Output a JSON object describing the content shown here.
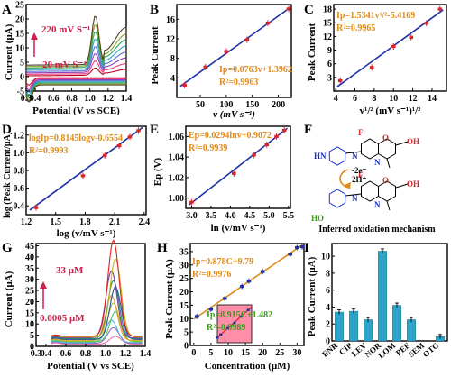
{
  "colors": {
    "fit_line": "#1f2fa8",
    "marker": "#d8262b",
    "eq_text": "#e08a18",
    "eq_text_green": "#3a9a1a",
    "annotation": "#cc1f4a",
    "bar": "#2aa5c9",
    "axis": "#000000",
    "inset_fill": "#ff8fa8",
    "inset_line": "#e0201c",
    "cv_colors": [
      "#c00020",
      "#e8407a",
      "#8f3fb8",
      "#5a6fd0",
      "#29a6c8",
      "#28a860",
      "#8a9d24",
      "#4b3d2a"
    ],
    "dpv_colors": [
      "#e96fa7",
      "#9f6bd0",
      "#49b3d6",
      "#4ec66c",
      "#a7c432",
      "#e79b35",
      "#2b4fa3",
      "#1d8a77",
      "#7b3fa0",
      "#c8b21a",
      "#e0201c"
    ]
  },
  "chart_data": [
    {
      "panel": "A",
      "type": "line",
      "xlabel": "Potential (V vs SCE)",
      "ylabel": "Current (μA)",
      "xticks": [
        "0.3",
        "0.4",
        "0.6",
        "0.8",
        "1.0",
        "1.2",
        "1.4"
      ],
      "yticks": [
        "-5",
        "0",
        "5",
        "10",
        "15",
        "20",
        "25"
      ],
      "xlim": [
        0.3,
        1.4
      ],
      "ylim": [
        -5,
        25
      ],
      "annotation_top": "220 mV S⁻¹",
      "annotation_bottom": "20 mV S⁻¹",
      "series_count": 8,
      "peak_potential": 1.06,
      "peak_currents": [
        2.5,
        4.5,
        6.5,
        8.5,
        10.5,
        12.5,
        14.5,
        17.0
      ],
      "baseline_currents": [
        0.3,
        0.8,
        1.3,
        1.8,
        2.4,
        3.0,
        3.5,
        4.0
      ]
    },
    {
      "panel": "B",
      "type": "scatter",
      "xlabel": "v (mV s⁻¹)",
      "ylabel": "Peak Current",
      "xticks": [
        "50",
        "100",
        "150",
        "200"
      ],
      "yticks": [
        "4",
        "8",
        "12",
        "16"
      ],
      "xlim": [
        5,
        225
      ],
      "ylim": [
        0,
        19
      ],
      "x": [
        20,
        60,
        100,
        140,
        180,
        220
      ],
      "y": [
        2.5,
        6.2,
        9.4,
        11.8,
        15.2,
        18.1
      ],
      "fit": {
        "slope": 0.0763,
        "intercept": 1.3962
      },
      "equation": "Ip=0.0763v+1.3962",
      "r2": "R²=0.9963"
    },
    {
      "panel": "C",
      "type": "scatter",
      "xlabel": "v¹/² (mV s⁻¹)¹/²",
      "ylabel": "Peak Current",
      "xticks": [
        "4",
        "6",
        "8",
        "10",
        "12",
        "14"
      ],
      "yticks": [
        "3",
        "6",
        "9",
        "12",
        "15",
        "18"
      ],
      "xlim": [
        3.8,
        15.5
      ],
      "ylim": [
        0,
        19
      ],
      "x": [
        4.47,
        7.75,
        10.0,
        11.83,
        13.42,
        14.83
      ],
      "y": [
        2.3,
        5.2,
        9.8,
        11.8,
        14.9,
        18.0
      ],
      "fit": {
        "slope": 1.5341,
        "intercept": -5.4169
      },
      "equation": "Ip=1.5341v¹/²-5.4169",
      "r2": "R²=0.9965"
    },
    {
      "panel": "D",
      "type": "scatter",
      "xlabel": "log (v/mV s⁻¹)",
      "ylabel": "log (Peak Current/μA)",
      "xticks": [
        "1.2",
        "1.5",
        "1.8",
        "2.1",
        "2.4"
      ],
      "yticks": [
        "0.4",
        "0.6",
        "0.8",
        "1.0",
        "1.2"
      ],
      "xlim": [
        1.2,
        2.42
      ],
      "ylim": [
        0.3,
        1.3
      ],
      "x": [
        1.301,
        1.778,
        2.0,
        2.146,
        2.255,
        2.342
      ],
      "y": [
        0.38,
        0.74,
        0.97,
        1.08,
        1.18,
        1.25
      ],
      "fit": {
        "slope": 0.8145,
        "intercept": -0.6554
      },
      "equation": "logIp=0.8145logv-0.6554",
      "r2": "R²=0.9993"
    },
    {
      "panel": "E",
      "type": "scatter",
      "xlabel": "ln (v/mV s⁻¹)",
      "ylabel": "Ep (V)",
      "xticks": [
        "3.0",
        "3.5",
        "4.0",
        "4.5",
        "5.0",
        "5.5"
      ],
      "yticks": [
        "1.00",
        "1.02",
        "1.04",
        "1.06"
      ],
      "xlim": [
        2.85,
        5.55
      ],
      "ylim": [
        0.99,
        1.07
      ],
      "x": [
        3.0,
        4.09,
        4.61,
        4.94,
        5.19,
        5.39
      ],
      "y": [
        0.996,
        1.024,
        1.042,
        1.052,
        1.06,
        1.066
      ],
      "fit": {
        "slope": 0.0294,
        "intercept": 0.9072
      },
      "equation": "Ep=0.0294lnv+0.9072",
      "r2": "R²=0.9939"
    },
    {
      "panel": "F",
      "type": "diagram",
      "caption": "Inferred oxidation mechanism",
      "arrow_label_top": "-2e⁻",
      "arrow_label_bottom": "2H⁺",
      "atoms": [
        "F",
        "N",
        "O",
        "OH",
        "HN",
        "HO"
      ]
    },
    {
      "panel": "G",
      "type": "line",
      "xlabel": "Potential (V vs SCE)",
      "ylabel": "Current (μA)",
      "xticks": [
        "0.3",
        "0.4",
        "0.6",
        "0.8",
        "1.0",
        "1.2",
        "1.4"
      ],
      "yticks": [
        "0",
        "5",
        "10",
        "15",
        "20",
        "25",
        "30",
        "35",
        "40",
        "45"
      ],
      "xlim": [
        0.3,
        1.4
      ],
      "ylim": [
        0,
        46
      ],
      "annotation_top": "33 μM",
      "annotation_bottom": "0.0005 μM",
      "series_count": 11,
      "peak_potential": 1.1,
      "peak_currents": [
        3.5,
        7.0,
        10.0,
        13.5,
        17.0,
        20.0,
        23.5,
        26.0,
        30.0,
        35.0,
        43.0
      ]
    },
    {
      "panel": "H",
      "type": "scatter",
      "xlabel": "Concentration (μM)",
      "ylabel": "Peak Current (μA)",
      "xticks": [
        "0",
        "5",
        "10",
        "15",
        "20",
        "25",
        "30"
      ],
      "yticks": [
        "0",
        "5",
        "10",
        "15",
        "20",
        "25",
        "30",
        "35"
      ],
      "xlim": [
        -1,
        32
      ],
      "ylim": [
        0,
        38
      ],
      "x_high": [
        0.9,
        5.0,
        9.0,
        14.0,
        16.0,
        20.0,
        28.0,
        30.0,
        31.5
      ],
      "y_high": [
        10.8,
        13.5,
        17.5,
        22.0,
        24.0,
        27.5,
        34.0,
        36.5,
        36.8
      ],
      "x_low": [
        0.0005,
        0.1,
        0.3,
        0.5,
        0.7,
        0.9
      ],
      "y_low": [
        1.5,
        2.4,
        4.2,
        5.8,
        7.6,
        9.5
      ],
      "fit_high": {
        "slope": 0.878,
        "intercept": 9.79
      },
      "fit_low": {
        "slope": 8.915,
        "intercept": 1.482
      },
      "equation_high": "Ip=0.878C+9.79",
      "r2_high": "R²=0.9976",
      "equation_low": "Ip=8.915C+1.482",
      "r2_low": "R²=0.9989"
    },
    {
      "panel": "I",
      "type": "bar",
      "ylabel": "Peak Current (μA)",
      "yticks": [
        "0",
        "2",
        "4",
        "6",
        "8",
        "10"
      ],
      "ylim": [
        0,
        11.5
      ],
      "categories": [
        "ENR",
        "CIP",
        "LEV",
        "NOR",
        "LOM",
        "PEF",
        "SEM",
        "OTC"
      ],
      "values": [
        3.4,
        3.5,
        2.5,
        10.6,
        4.2,
        2.5,
        0.0,
        0.5
      ]
    }
  ]
}
